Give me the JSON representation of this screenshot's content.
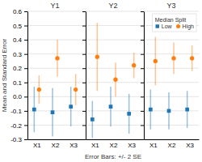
{
  "chart_data": {
    "type": "dot",
    "x_label": "Error Bars: +/- 2 SE",
    "y_label": "Mean and Standard Error",
    "legend_title": "Median Split",
    "legend": "upper right",
    "grid": true,
    "ylim": [
      -0.3,
      0.6
    ],
    "yticks": [
      -0.3,
      -0.2,
      -0.1,
      {
        "value": 0,
        "label": "0.0"
      },
      0.1,
      0.2,
      0.3,
      0.4,
      0.5,
      0.6
    ],
    "series": [
      {
        "name": "Low",
        "marker": "square"
      },
      {
        "name": "High",
        "marker": "circle"
      }
    ],
    "panels": [
      {
        "title": "Y1",
        "categories": [
          "X1",
          "X2",
          "X3"
        ],
        "series": [
          {
            "values": [
              -0.09,
              -0.11,
              -0.07
            ],
            "errors": [
              0.16,
              0.17,
              0.14
            ]
          },
          {
            "values": [
              0.05,
              0.27,
              0.05
            ],
            "errors": [
              0.1,
              0.13,
              0.11
            ]
          }
        ]
      },
      {
        "title": "Y2",
        "categories": [
          "X1",
          "X2",
          "X3"
        ],
        "series": [
          {
            "values": [
              -0.16,
              -0.07,
              -0.12
            ],
            "errors": [
              0.13,
              0.14,
              0.14
            ]
          },
          {
            "values": [
              0.28,
              0.12,
              0.22
            ],
            "errors": [
              0.24,
              0.12,
              0.09
            ]
          }
        ]
      },
      {
        "title": "Y3",
        "categories": [
          "X1",
          "X2",
          "X3"
        ],
        "series": [
          {
            "values": [
              -0.09,
              -0.1,
              -0.09
            ],
            "errors": [
              0.14,
              0.13,
              0.13
            ]
          },
          {
            "values": [
              0.25,
              0.27,
              0.27
            ],
            "errors": [
              0.17,
              0.11,
              0.09
            ]
          }
        ]
      }
    ]
  }
}
